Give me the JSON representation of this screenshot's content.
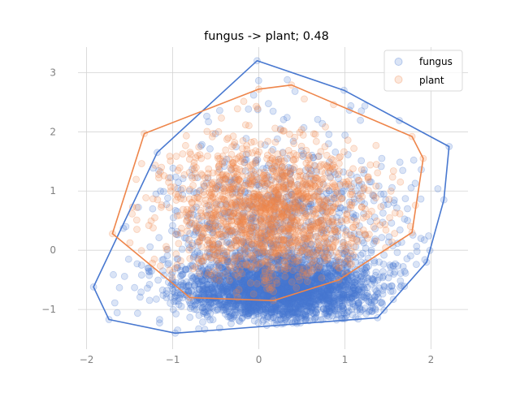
{
  "chart_data": {
    "type": "scatter",
    "title": "fungus -> plant; 0.48",
    "xlabel": "",
    "ylabel": "",
    "xlim": [
      -2.1,
      2.43
    ],
    "ylim": [
      -1.67,
      3.43
    ],
    "xticks": [
      -2,
      -1,
      0,
      1,
      2
    ],
    "xtick_labels": [
      "−2",
      "−1",
      "0",
      "1",
      "2"
    ],
    "yticks": [
      -1,
      0,
      1,
      2,
      3
    ],
    "ytick_labels": [
      "−1",
      "0",
      "1",
      "2",
      "3"
    ],
    "grid": true,
    "legend": {
      "position": "top-right",
      "entries": [
        {
          "label": "fungus",
          "color": "#4878d0"
        },
        {
          "label": "plant",
          "color": "#ee854a"
        }
      ]
    },
    "series": [
      {
        "name": "fungus",
        "color": "#4878d0",
        "marker_alpha": 0.2,
        "point_count": 3500,
        "center": [
          0.25,
          -0.8
        ],
        "hull": [
          [
            -0.02,
            3.2
          ],
          [
            0.99,
            2.7
          ],
          [
            2.21,
            1.75
          ],
          [
            2.15,
            0.85
          ],
          [
            1.95,
            -0.2
          ],
          [
            1.38,
            -1.14
          ],
          [
            -0.97,
            -1.4
          ],
          [
            -1.74,
            -1.17
          ],
          [
            -1.92,
            -0.62
          ],
          [
            -1.18,
            1.65
          ]
        ]
      },
      {
        "name": "plant",
        "color": "#ee854a",
        "marker_alpha": 0.2,
        "point_count": 1500,
        "center": [
          0.1,
          0.6
        ],
        "hull": [
          [
            0.0,
            2.72
          ],
          [
            0.38,
            2.79
          ],
          [
            1.78,
            1.92
          ],
          [
            1.91,
            1.55
          ],
          [
            1.78,
            0.3
          ],
          [
            0.93,
            -0.5
          ],
          [
            0.17,
            -0.85
          ],
          [
            -0.8,
            -0.8
          ],
          [
            -1.7,
            0.28
          ],
          [
            -1.33,
            1.97
          ]
        ]
      }
    ]
  }
}
